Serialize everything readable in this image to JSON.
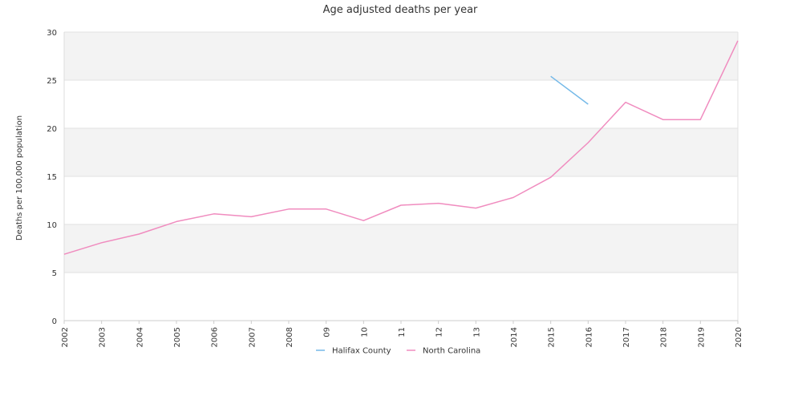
{
  "chart_data": {
    "type": "line",
    "title": "Age adjusted deaths per year",
    "xlabel": "",
    "ylabel": "Deaths per 100,000 population",
    "categories": [
      "2002",
      "2003",
      "2004",
      "2005",
      "2006",
      "2007",
      "2008",
      "09",
      "10",
      "11",
      "12",
      "13",
      "2014",
      "2015",
      "2016",
      "2017",
      "2018",
      "2019",
      "2020"
    ],
    "ylim": [
      0,
      30
    ],
    "yticks": [
      0,
      5,
      10,
      15,
      20,
      25,
      30
    ],
    "grid": true,
    "legend": "bottom",
    "series": [
      {
        "name": "Halifax County",
        "color": "#74b9e8",
        "values": [
          null,
          null,
          null,
          null,
          null,
          null,
          null,
          null,
          null,
          null,
          null,
          null,
          null,
          25.4,
          22.5,
          null,
          null,
          null,
          null
        ]
      },
      {
        "name": "North Carolina",
        "color": "#f08cbf",
        "values": [
          6.9,
          8.1,
          9.0,
          10.3,
          11.1,
          10.8,
          11.6,
          11.6,
          10.4,
          12.0,
          12.2,
          11.7,
          12.8,
          14.9,
          18.5,
          22.7,
          20.9,
          20.9,
          29.1
        ]
      }
    ]
  }
}
